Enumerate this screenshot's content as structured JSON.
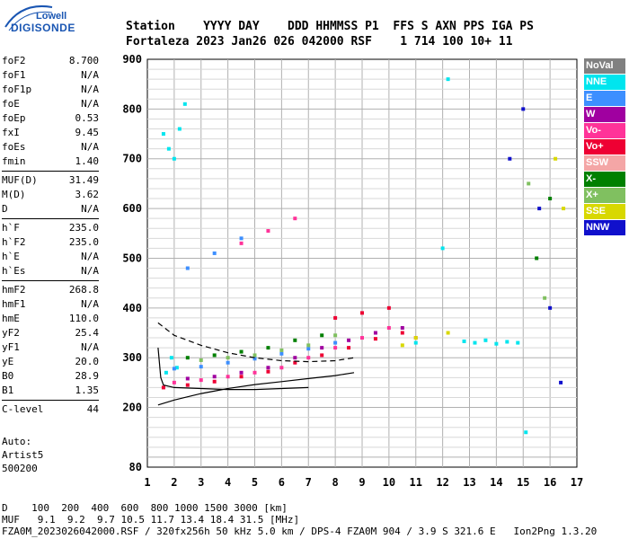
{
  "logo": {
    "line1": "Lowell",
    "line2": "DIGISONDE"
  },
  "header": {
    "labels": "Station    YYYY DAY    DDD HHMMSS P1  FFS S AXN PPS IGA PS",
    "values": "Fortaleza 2023 Jan26 026 042000 RSF    1 714 100 10+ 11"
  },
  "params": [
    [
      {
        "k": "foF2",
        "v": "8.700"
      },
      {
        "k": "foF1",
        "v": "N/A"
      },
      {
        "k": "foF1p",
        "v": "N/A"
      },
      {
        "k": "foE",
        "v": "N/A"
      },
      {
        "k": "foEp",
        "v": "0.53"
      },
      {
        "k": "fxI",
        "v": "9.45"
      },
      {
        "k": "foEs",
        "v": "N/A"
      },
      {
        "k": "fmin",
        "v": "1.40"
      }
    ],
    [
      {
        "k": "MUF(D)",
        "v": "31.49"
      },
      {
        "k": "M(D)",
        "v": "3.62"
      },
      {
        "k": "D",
        "v": "N/A"
      }
    ],
    [
      {
        "k": "h`F",
        "v": "235.0"
      },
      {
        "k": "h`F2",
        "v": "235.0"
      },
      {
        "k": "h`E",
        "v": "N/A"
      },
      {
        "k": "h`Es",
        "v": "N/A"
      }
    ],
    [
      {
        "k": "hmF2",
        "v": "268.8"
      },
      {
        "k": "hmF1",
        "v": "N/A"
      },
      {
        "k": "hmE",
        "v": "110.0"
      },
      {
        "k": "yF2",
        "v": "25.4"
      },
      {
        "k": "yF1",
        "v": "N/A"
      },
      {
        "k": "yE",
        "v": "20.0"
      },
      {
        "k": "B0",
        "v": "28.9"
      },
      {
        "k": "B1",
        "v": "1.35"
      }
    ],
    [
      {
        "k": "C-level",
        "v": "44"
      }
    ]
  ],
  "auto": {
    "line1": "Auto:",
    "line2": "Artist5",
    "line3": "500200"
  },
  "legend": [
    {
      "label": "NoVal",
      "color": "#808080"
    },
    {
      "label": "NNE",
      "color": "#00e5ee"
    },
    {
      "label": "E",
      "color": "#3d8fff"
    },
    {
      "label": "W",
      "color": "#a000a0"
    },
    {
      "label": "Vo-",
      "color": "#ff3399"
    },
    {
      "label": "Vo+",
      "color": "#ee0033"
    },
    {
      "label": "SSW",
      "color": "#f4a6a6"
    },
    {
      "label": "X-",
      "color": "#008000"
    },
    {
      "label": "X+",
      "color": "#80c060"
    },
    {
      "label": "SSE",
      "color": "#d8d800"
    },
    {
      "label": "NNW",
      "color": "#1010cc"
    }
  ],
  "footer": {
    "line1": "D    100  200  400  600  800 1000 1500 3000 [km]",
    "line2": "MUF   9.1  9.2  9.7 10.5 11.7 13.4 18.4 31.5 [MHz]",
    "line3": "FZA0M_2023026042000.RSF / 320fx256h 50 kHz 5.0 km / DPS-4 FZA0M 904 / 3.9 S 321.6 E   Ion2Png 1.3.20"
  },
  "chart_data": {
    "type": "scatter",
    "xlim": [
      1,
      17
    ],
    "ylim": [
      80,
      900
    ],
    "x_ticks": [
      1,
      2,
      3,
      4,
      5,
      6,
      7,
      8,
      9,
      10,
      11,
      12,
      13,
      14,
      15,
      16,
      17
    ],
    "y_ticks": [
      80,
      200,
      300,
      400,
      500,
      600,
      700,
      800,
      900
    ],
    "grid": true,
    "series": [
      {
        "name": "NNE",
        "x": [
          1.6,
          1.8,
          2.0,
          2.2,
          2.4,
          1.7,
          1.9,
          2.1,
          12.8,
          13.2,
          13.6,
          14.0,
          14.4,
          14.8,
          12.0,
          12.2,
          11.0,
          15.1
        ],
        "y": [
          750,
          720,
          700,
          760,
          810,
          270,
          300,
          280,
          333,
          330,
          335,
          328,
          332,
          330,
          520,
          860,
          330,
          150
        ]
      },
      {
        "name": "E",
        "x": [
          2.0,
          3.0,
          4.0,
          5.0,
          6.0,
          7.0,
          8.0,
          2.5,
          3.5,
          4.5
        ],
        "y": [
          278,
          282,
          290,
          298,
          308,
          318,
          330,
          480,
          510,
          540
        ]
      },
      {
        "name": "W",
        "x": [
          2.5,
          3.5,
          4.5,
          5.5,
          6.5,
          7.5,
          8.5,
          9.5,
          10.5
        ],
        "y": [
          258,
          262,
          270,
          280,
          300,
          320,
          335,
          350,
          360
        ]
      },
      {
        "name": "Vo-",
        "x": [
          2.0,
          3.0,
          4.0,
          5.0,
          6.0,
          7.0,
          8.0,
          9.0,
          10.0,
          11.0,
          4.5,
          5.5,
          6.5
        ],
        "y": [
          250,
          255,
          262,
          270,
          280,
          300,
          320,
          340,
          360,
          340,
          530,
          555,
          580
        ]
      },
      {
        "name": "Vo+",
        "x": [
          1.6,
          2.5,
          3.5,
          4.5,
          5.5,
          6.5,
          7.5,
          8.5,
          9.5,
          10.5,
          8.0,
          9.0,
          10.0
        ],
        "y": [
          240,
          245,
          252,
          262,
          272,
          290,
          305,
          320,
          338,
          350,
          380,
          390,
          400
        ]
      },
      {
        "name": "X-",
        "x": [
          2.5,
          3.5,
          4.5,
          5.5,
          6.5,
          7.5,
          15.5,
          16.0
        ],
        "y": [
          300,
          305,
          312,
          320,
          335,
          345,
          500,
          620
        ]
      },
      {
        "name": "X+",
        "x": [
          3.0,
          4.0,
          5.0,
          6.0,
          7.0,
          8.0,
          15.2,
          15.8
        ],
        "y": [
          295,
          300,
          305,
          315,
          325,
          345,
          650,
          420
        ]
      },
      {
        "name": "SSE",
        "x": [
          10.5,
          11.0,
          12.2,
          16.2,
          16.5
        ],
        "y": [
          325,
          340,
          350,
          700,
          600
        ]
      },
      {
        "name": "NNW",
        "x": [
          15.0,
          15.6,
          16.0,
          16.4,
          14.5
        ],
        "y": [
          800,
          600,
          400,
          250,
          700
        ]
      }
    ],
    "profile_curves": [
      {
        "x": [
          1.4,
          2.0,
          3.0,
          4.0,
          5.0,
          6.0,
          7.0,
          8.0,
          8.7
        ],
        "y": [
          205,
          215,
          228,
          238,
          246,
          252,
          258,
          264,
          270
        ]
      },
      {
        "x": [
          1.4,
          2.0,
          3.0,
          4.0,
          5.0,
          6.0,
          7.0,
          8.0,
          8.7
        ],
        "y": [
          370,
          345,
          325,
          310,
          300,
          294,
          292,
          294,
          300
        ]
      },
      {
        "x": [
          1.4,
          1.5,
          1.6,
          2.0,
          3.0,
          4.0,
          5.0,
          6.0,
          7.0
        ],
        "y": [
          320,
          260,
          245,
          240,
          238,
          236,
          236,
          238,
          240
        ]
      }
    ]
  }
}
